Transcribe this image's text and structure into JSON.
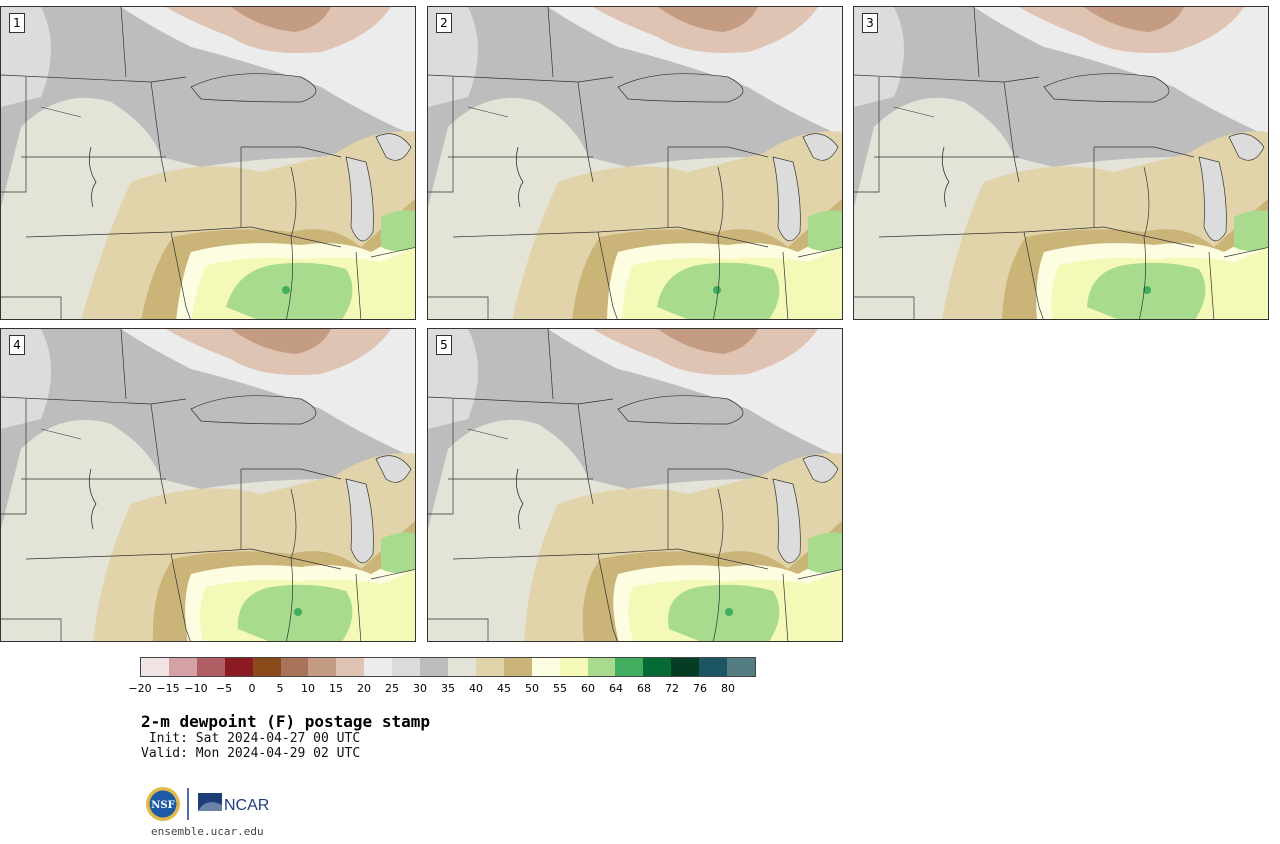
{
  "panels": [
    {
      "label": "1"
    },
    {
      "label": "2"
    },
    {
      "label": "3"
    },
    {
      "label": "4"
    },
    {
      "label": "5"
    }
  ],
  "colorbar": {
    "colors": [
      "#f2e4e4",
      "#d4a2a4",
      "#b05e63",
      "#8c1a22",
      "#8a4a1a",
      "#a87358",
      "#c39c83",
      "#dfc3b3",
      "#ececec",
      "#dcdcdc",
      "#bdbdbd",
      "#e3e3d8",
      "#e1d3aa",
      "#cbb478",
      "#fdfde2",
      "#f4f9b8",
      "#a8db8d",
      "#41ad5f",
      "#066a36",
      "#053d24",
      "#1c5564",
      "#537d81"
    ],
    "ticks": [
      "−20",
      "−15",
      "−10",
      "−5",
      "0",
      "5",
      "10",
      "15",
      "20",
      "25",
      "30",
      "35",
      "40",
      "45",
      "50",
      "55",
      "60",
      "64",
      "68",
      "72",
      "76",
      "80"
    ]
  },
  "title": "2-m dewpoint (F) postage stamp",
  "init": " Init: Sat 2024-04-27 00 UTC",
  "valid": "Valid: Mon 2024-04-29 02 UTC",
  "logos": {
    "nsf": "NSF",
    "ncar": "NCAR"
  },
  "site": "ensemble.ucar.edu",
  "map_colors": {
    "gray": "#bdbdbd",
    "light_gray": "#dcdcdc",
    "very_light": "#ececec",
    "beige": "#e3e3d8",
    "tan": "#e1d3aa",
    "dark_tan": "#cbb478",
    "pale_yellow": "#f4f9b8",
    "cream": "#fdfde2",
    "green": "#a8db8d",
    "dark_green": "#41ad5f",
    "brown": "#dfc3b3",
    "rose": "#c39c83",
    "lake": "#bdbdbd",
    "border": "#333333"
  }
}
